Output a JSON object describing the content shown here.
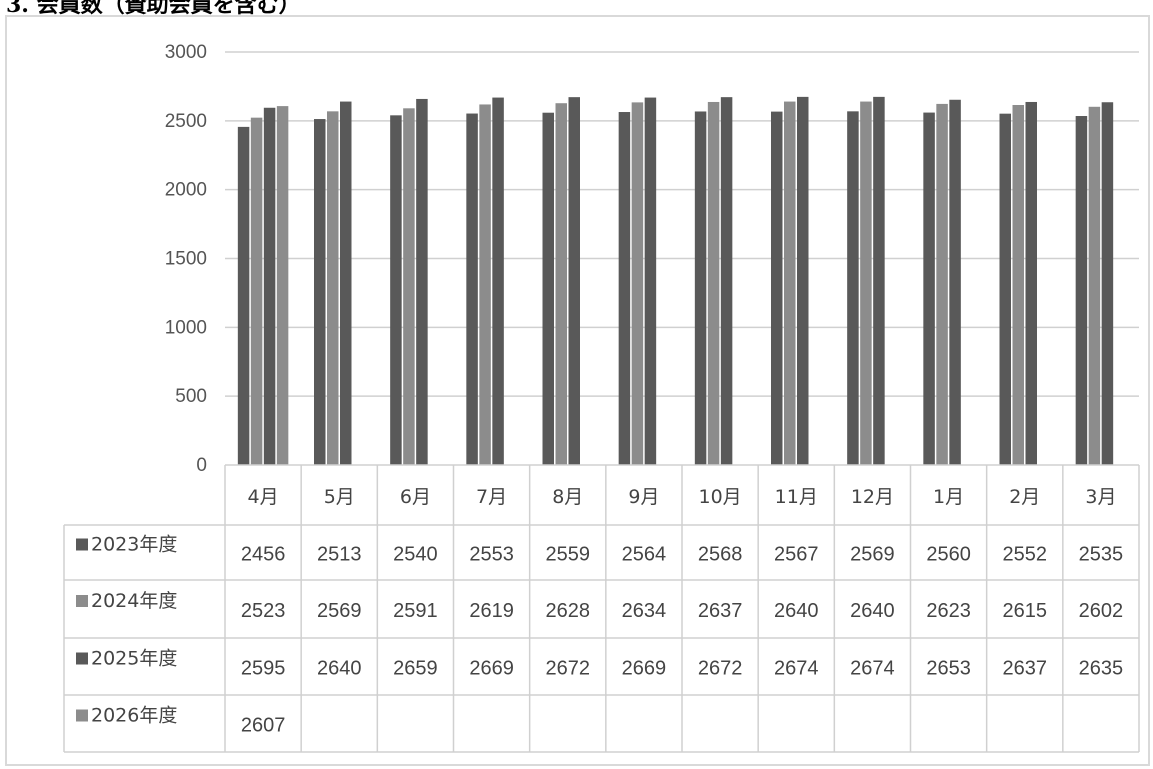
{
  "heading": "3. 会員数（賛助会員を含む）",
  "colors": {
    "2023年度": "#595959",
    "2024年度": "#8c8c8c",
    "2025年度": "#595959",
    "2026年度": "#8c8c8c",
    "gridline": "#d0d0d0",
    "frame": "#d9d9d9"
  },
  "chart_data": {
    "type": "bar",
    "title": "",
    "xlabel": "",
    "ylabel": "",
    "ylim": [
      0,
      3000
    ],
    "y_ticks": [
      0,
      500,
      1000,
      1500,
      2000,
      2500,
      3000
    ],
    "grid": true,
    "legend": "data table below chart",
    "categories": [
      "4月",
      "5月",
      "6月",
      "7月",
      "8月",
      "9月",
      "10月",
      "11月",
      "12月",
      "1月",
      "2月",
      "3月"
    ],
    "series": [
      {
        "name": "2023年度",
        "values": [
          2456,
          2513,
          2540,
          2553,
          2559,
          2564,
          2568,
          2567,
          2569,
          2560,
          2552,
          2535
        ]
      },
      {
        "name": "2024年度",
        "values": [
          2523,
          2569,
          2591,
          2619,
          2628,
          2634,
          2637,
          2640,
          2640,
          2623,
          2615,
          2602
        ]
      },
      {
        "name": "2025年度",
        "values": [
          2595,
          2640,
          2659,
          2669,
          2672,
          2669,
          2672,
          2674,
          2674,
          2653,
          2637,
          2635
        ]
      },
      {
        "name": "2026年度",
        "values": [
          2607,
          null,
          null,
          null,
          null,
          null,
          null,
          null,
          null,
          null,
          null,
          null
        ]
      }
    ]
  }
}
